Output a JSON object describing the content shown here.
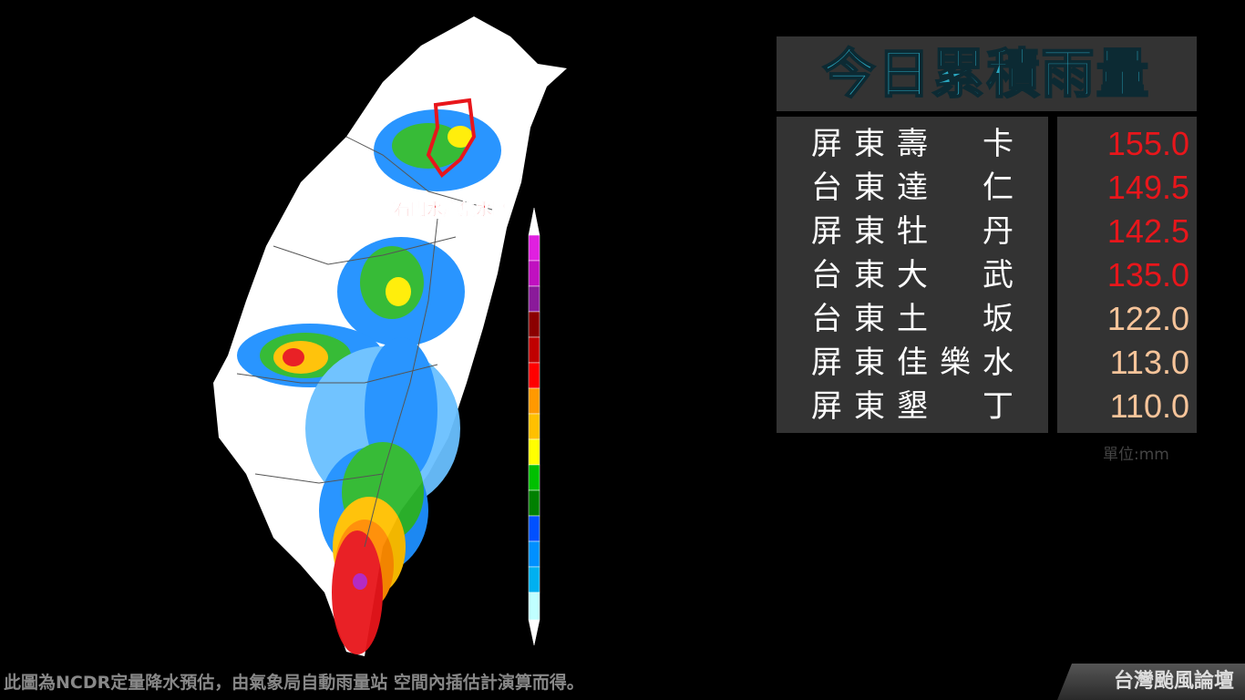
{
  "map": {
    "label": "石門水庫集水區"
  },
  "panel": {
    "title": "今日累積雨量",
    "rows": [
      {
        "name": "屏東壽　卡",
        "value": "155.0",
        "color": "#e8161b"
      },
      {
        "name": "台東達　仁",
        "value": "149.5",
        "color": "#e8161b"
      },
      {
        "name": "屏東牡　丹",
        "value": "142.5",
        "color": "#e8161b"
      },
      {
        "name": "台東大　武",
        "value": "135.0",
        "color": "#e8161b"
      },
      {
        "name": "台東土　坂",
        "value": "122.0",
        "color": "#f6c49a"
      },
      {
        "name": "屏東佳樂水",
        "value": "113.0",
        "color": "#f6c49a"
      },
      {
        "name": "屏東墾　丁",
        "value": "110.0",
        "color": "#f6c49a"
      }
    ],
    "unit": "單位:mm"
  },
  "footer": {
    "note": "此圖為NCDR定量降水預估，由氣象局自動雨量站 空間內插估計演算而得。",
    "brand": "台灣颱風論壇"
  }
}
